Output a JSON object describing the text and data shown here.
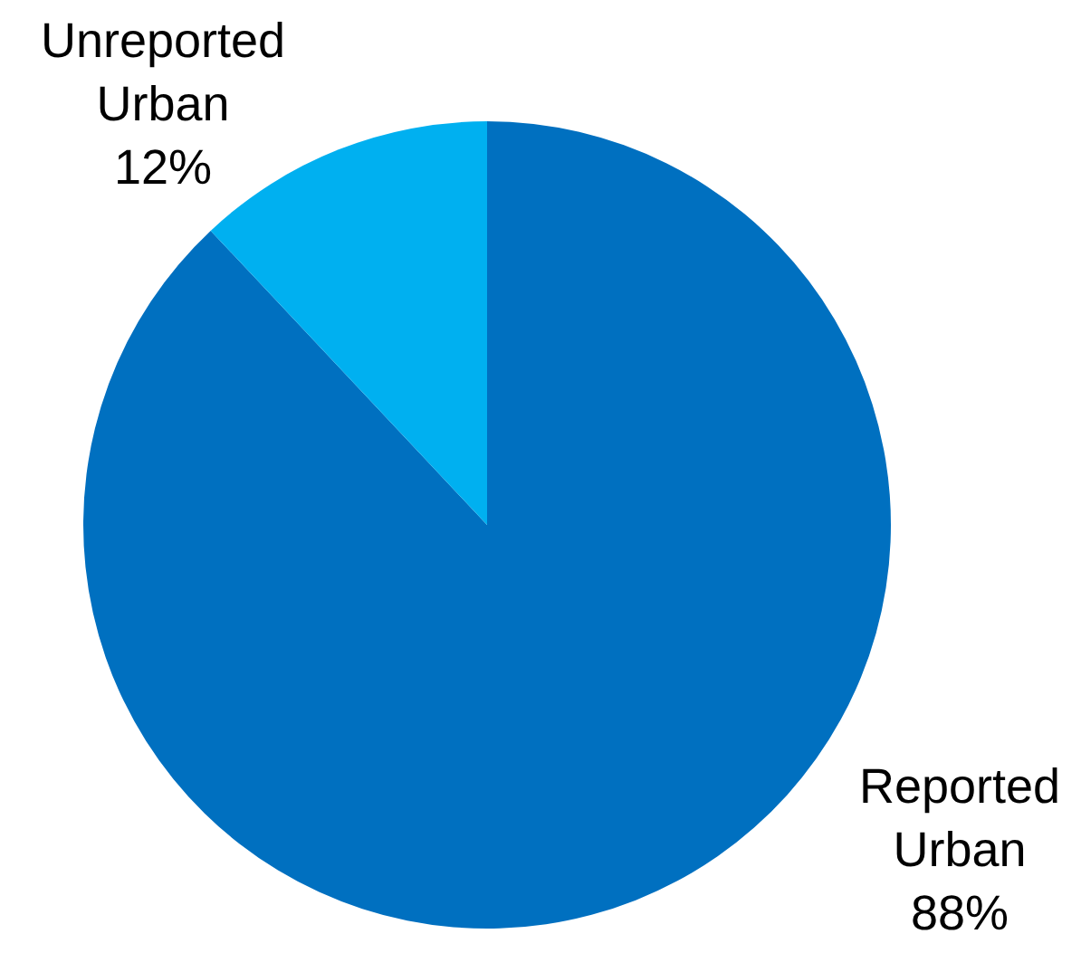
{
  "chart_data": {
    "type": "pie",
    "categories": [
      "Reported Urban",
      "Unreported Urban"
    ],
    "values": [
      88,
      12
    ],
    "colors": [
      "#0070c0",
      "#00b0f0"
    ],
    "value_labels": [
      "88%",
      "12%"
    ]
  }
}
